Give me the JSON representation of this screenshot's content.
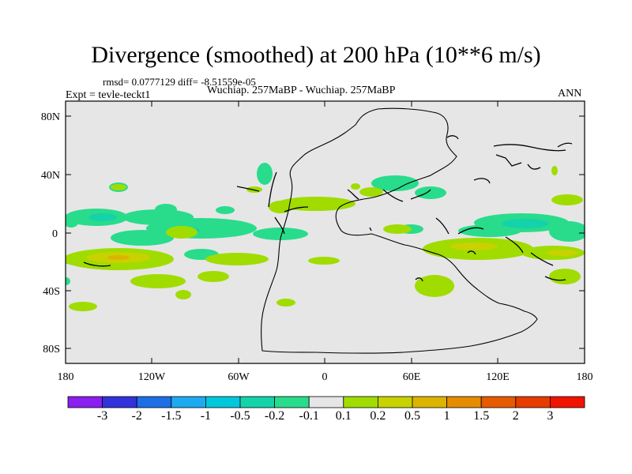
{
  "title": "Divergence (smoothed) at 200 hPa (10**6 m/s)",
  "stats": "rmsd= 0.0777129 diff= -8.51559e-05",
  "experiment": "Expt = tevle-teckt1",
  "subtitle": "Wuchiap. 257MaBP - Wuchiap. 257MaBP",
  "season": "ANN",
  "lat_labels": [
    "80N",
    "40N",
    "0",
    "40S",
    "80S"
  ],
  "lon_labels": [
    "180",
    "120W",
    "60W",
    "0",
    "60E",
    "120E",
    "180"
  ],
  "colorbar": {
    "colors": [
      "#8b1ef0",
      "#3232dc",
      "#1e6ee6",
      "#1eaaf0",
      "#00c8dc",
      "#14d2aa",
      "#28dc8c",
      "#e6e6e6",
      "#a0dc00",
      "#c8d200",
      "#dcb400",
      "#e68c00",
      "#e65a00",
      "#e63c00",
      "#f01400"
    ],
    "labels": [
      "-3",
      "-2",
      "-1.5",
      "-1",
      "-0.5",
      "-0.2",
      "-0.1",
      "0.1",
      "0.2",
      "0.5",
      "1",
      "1.5",
      "2",
      "3"
    ]
  }
}
